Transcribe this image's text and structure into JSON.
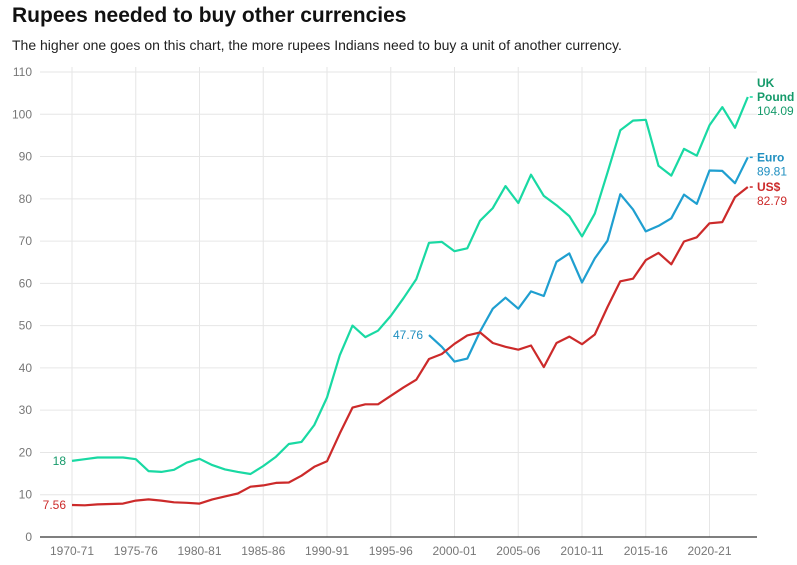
{
  "chart_data": {
    "type": "line",
    "title": "Rupees needed to buy other currencies",
    "subtitle": "The higher one goes on this chart, the more rupees Indians need to buy a unit of another currency.",
    "xlabel": "",
    "ylabel": "",
    "ylim": [
      0,
      110
    ],
    "yticks": [
      0,
      10,
      20,
      30,
      40,
      50,
      60,
      70,
      80,
      90,
      100,
      110
    ],
    "xtick_labels": [
      "1970-71",
      "1975-76",
      "1980-81",
      "1985-86",
      "1990-91",
      "1995-96",
      "2000-01",
      "2005-06",
      "2010-11",
      "2015-16",
      "2020-21"
    ],
    "grid": true,
    "years_start": 1970,
    "series": [
      {
        "name": "UK Pound",
        "color": "#19d9a3",
        "label_color": "#159a6a",
        "start": 1970,
        "end_label": "104.09",
        "start_label": "18",
        "values": [
          18,
          18.4,
          18.8,
          18.8,
          18.8,
          18.4,
          15.6,
          15.4,
          15.9,
          17.6,
          18.5,
          17,
          16,
          15.4,
          14.9,
          16.8,
          19,
          22,
          22.5,
          26.5,
          33,
          43,
          50,
          47.3,
          48.8,
          52.3,
          56.5,
          61,
          69.6,
          69.8,
          67.6,
          68.3,
          74.8,
          77.8,
          83,
          79,
          85.7,
          80.7,
          78.5,
          75.9,
          71.1,
          76.5,
          86.2,
          96.2,
          98.5,
          98.7,
          87.8,
          85.5,
          91.8,
          90.2,
          97.4,
          101.7,
          96.8,
          104.09
        ]
      },
      {
        "name": "Euro",
        "color": "#1f9fd0",
        "label_color": "#1f8fc0",
        "start": 1998,
        "end_label": "89.81",
        "start_label": "47.76",
        "values": [
          47.76,
          45,
          41.5,
          42.2,
          48.6,
          54,
          56.6,
          54,
          58.1,
          57,
          65.1,
          67.1,
          60.2,
          65.9,
          70.1,
          81.1,
          77.5,
          72.3,
          73.6,
          75.4,
          81,
          78.8,
          86.7,
          86.6,
          83.7,
          89.81
        ]
      },
      {
        "name": "US$",
        "color": "#cc2a2a",
        "label_color": "#cc2a2a",
        "start": 1970,
        "end_label": "82.79",
        "start_label": "7.56",
        "values": [
          7.56,
          7.5,
          7.7,
          7.8,
          7.9,
          8.6,
          8.9,
          8.6,
          8.2,
          8.1,
          7.9,
          8.9,
          9.6,
          10.3,
          11.9,
          12.2,
          12.8,
          12.9,
          14.5,
          16.6,
          17.9,
          24.5,
          30.6,
          31.4,
          31.4,
          33.4,
          35.4,
          37.2,
          42.1,
          43.3,
          45.7,
          47.7,
          48.4,
          45.9,
          45,
          44.3,
          45.3,
          40.2,
          45.9,
          47.4,
          45.6,
          47.9,
          54.4,
          60.5,
          61.1,
          65.5,
          67.2,
          64.5,
          69.9,
          70.9,
          74.2,
          74.5,
          80.4,
          82.79
        ]
      }
    ]
  }
}
